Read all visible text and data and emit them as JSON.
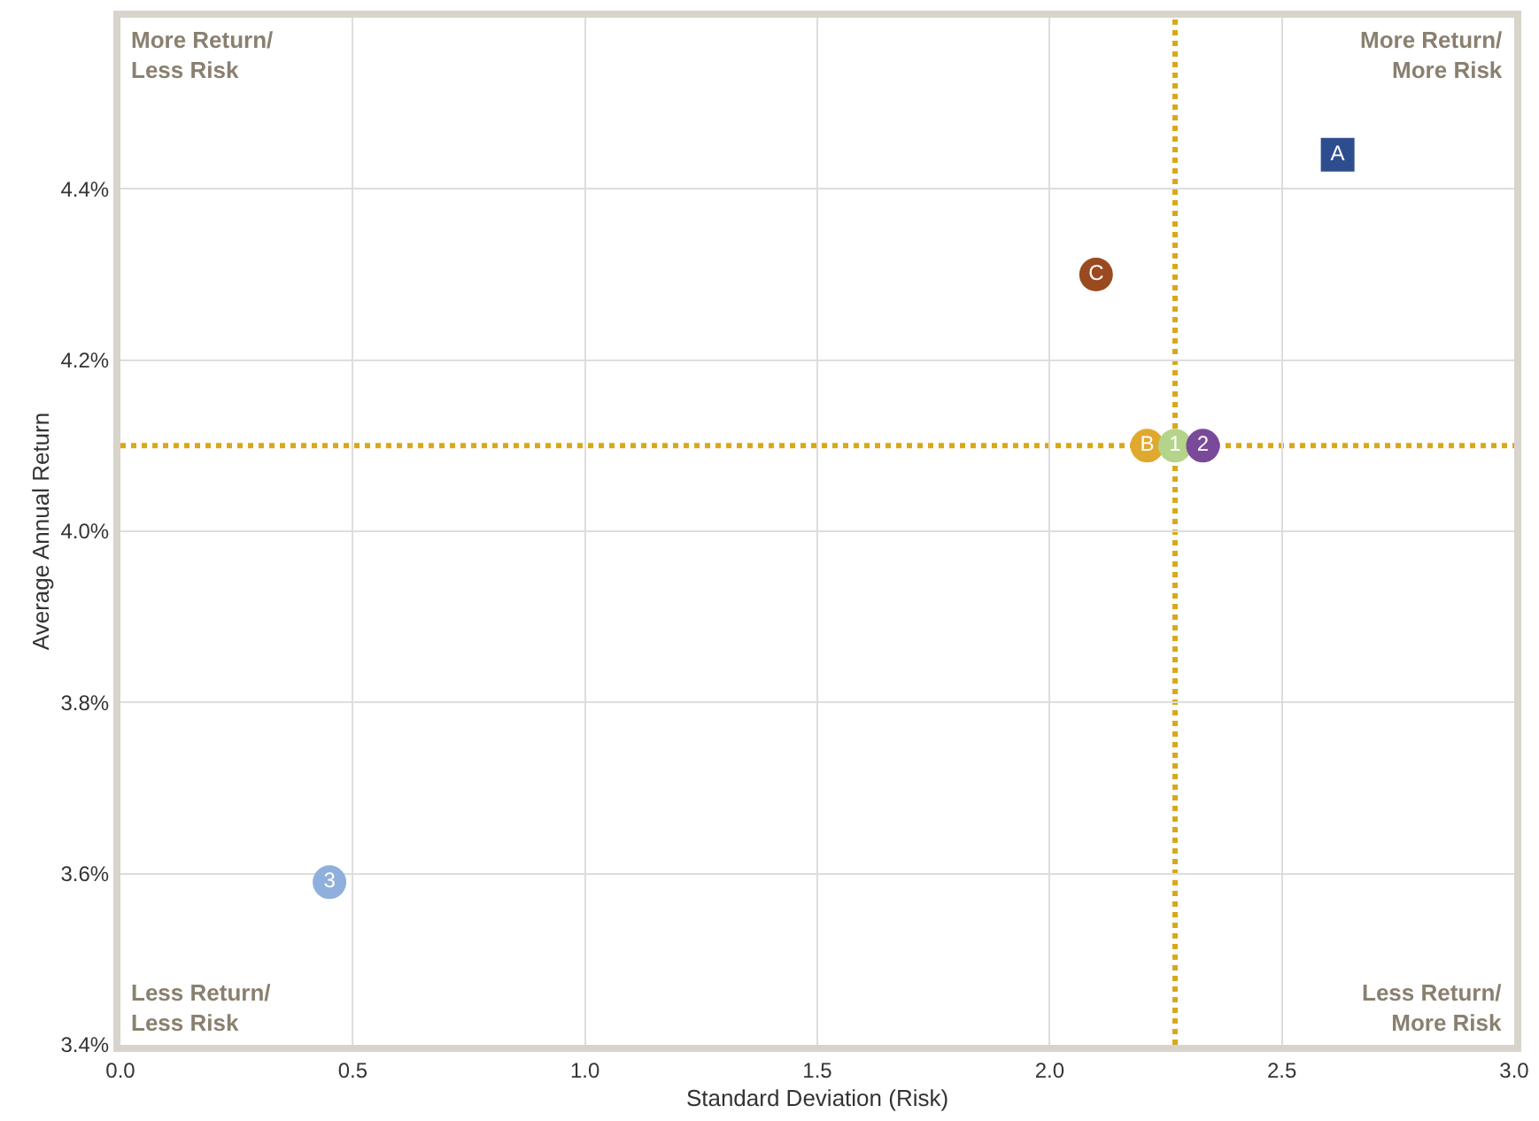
{
  "chart_data": {
    "type": "scatter",
    "xlabel": "Standard Deviation (Risk)",
    "ylabel": "Average Annual Return",
    "xlim": [
      0,
      3
    ],
    "xticks": [
      {
        "value": 0,
        "label": "0.0"
      },
      0.5,
      {
        "value": 1,
        "label": "1.0"
      },
      1.5,
      {
        "value": 2,
        "label": "2.0"
      },
      2.5,
      {
        "value": 3,
        "label": "3.0"
      }
    ],
    "ylim": [
      3.4,
      4.6
    ],
    "yticks": [
      {
        "value": 3.4,
        "label": "3.4%"
      },
      {
        "value": 3.6,
        "label": "3.6%"
      },
      {
        "value": 3.8,
        "label": "3.8%"
      },
      {
        "value": 4.0,
        "label": "4.0%"
      },
      {
        "value": 4.2,
        "label": "4.2%"
      },
      {
        "value": 4.4,
        "label": "4.4%"
      }
    ],
    "grid": true,
    "legend": false,
    "series": [
      {
        "name": "A",
        "color": "#2e4d8f",
        "marker": "square",
        "x": [
          2.62
        ],
        "values": [
          4.44
        ]
      },
      {
        "name": "C",
        "color": "#9a4a1e",
        "marker": "circle",
        "x": [
          2.1
        ],
        "values": [
          4.3
        ]
      },
      {
        "name": "B",
        "color": "#e0a82e",
        "marker": "circle",
        "x": [
          2.21
        ],
        "values": [
          4.1
        ]
      },
      {
        "name": "1",
        "color": "#b4d48a",
        "marker": "circle",
        "x": [
          2.27
        ],
        "values": [
          4.1
        ]
      },
      {
        "name": "2",
        "color": "#7a4a9a",
        "marker": "circle",
        "x": [
          2.33
        ],
        "values": [
          4.1
        ]
      },
      {
        "name": "3",
        "color": "#8fb0dc",
        "marker": "circle",
        "x": [
          0.45
        ],
        "values": [
          3.59
        ]
      }
    ],
    "ref_lines": [
      {
        "axis": "x",
        "value": 2.27,
        "color": "#d9a81a",
        "line_style": "dotted"
      },
      {
        "axis": "y",
        "value": 4.1,
        "color": "#d9a81a",
        "line_style": "dotted"
      }
    ],
    "annotations": [
      "More Return/\nLess Risk",
      "More Return/\nMore Risk",
      "Less Return/\nLess Risk",
      "Less Return/\nMore Risk"
    ]
  }
}
